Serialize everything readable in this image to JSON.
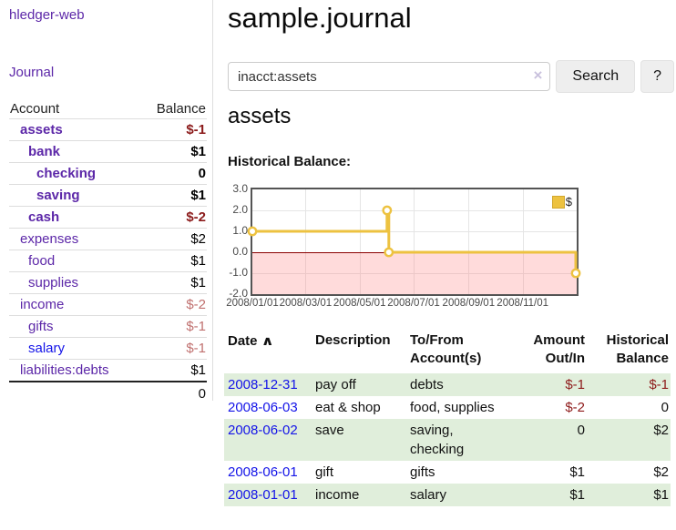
{
  "app": {
    "title": "hledger-web",
    "journal_link": "Journal"
  },
  "sidebar": {
    "header": {
      "account": "Account",
      "balance": "Balance"
    },
    "accounts": [
      {
        "name": "assets",
        "depth": 1,
        "bold": true,
        "balance": "$-1",
        "neg": "strong"
      },
      {
        "name": "bank",
        "depth": 2,
        "bold": true,
        "balance": "$1"
      },
      {
        "name": "checking",
        "depth": 3,
        "bold": true,
        "balance": "0"
      },
      {
        "name": "saving",
        "depth": 3,
        "bold": true,
        "balance": "$1"
      },
      {
        "name": "cash",
        "depth": 2,
        "bold": true,
        "balance": "$-2",
        "neg": "strong"
      },
      {
        "name": "expenses",
        "depth": 1,
        "bold": false,
        "balance": "$2"
      },
      {
        "name": "food",
        "depth": 2,
        "bold": false,
        "balance": "$1"
      },
      {
        "name": "supplies",
        "depth": 2,
        "bold": false,
        "balance": "$1"
      },
      {
        "name": "income",
        "depth": 1,
        "bold": false,
        "balance": "$-2",
        "neg": "soft"
      },
      {
        "name": "gifts",
        "depth": 2,
        "bold": false,
        "balance": "$-1",
        "neg": "soft"
      },
      {
        "name": "salary",
        "depth": 2,
        "bold": false,
        "balance": "$-1",
        "neg": "soft",
        "blue": true
      },
      {
        "name": "liabilities:debts",
        "depth": 1,
        "bold": false,
        "balance": "$1"
      }
    ],
    "total": "0"
  },
  "header": {
    "title": "sample.journal"
  },
  "search": {
    "value": "inacct:assets",
    "clear_icon": "×",
    "button": "Search",
    "help": "?"
  },
  "account_page": {
    "title": "assets",
    "chart_label": "Historical Balance:"
  },
  "chart_data": {
    "type": "line",
    "step": true,
    "title": "Historical Balance:",
    "series": [
      {
        "name": "$",
        "color": "#edc240",
        "points": [
          [
            "2008-01-01",
            1
          ],
          [
            "2008-06-01",
            2
          ],
          [
            "2008-06-03",
            0
          ],
          [
            "2008-12-31",
            -1
          ]
        ]
      }
    ],
    "xlim": [
      "2008-01-01",
      "2009-01-01"
    ],
    "ylim": [
      -2,
      3
    ],
    "yticks": [
      3,
      2,
      1,
      0,
      -1,
      -2
    ],
    "xticks": [
      "2008/01/01",
      "2008/03/01",
      "2008/05/01",
      "2008/07/01",
      "2008/09/01",
      "2008/11/01"
    ],
    "grid": true,
    "legend_position": "top-right",
    "negative_region_color": "#f9d9d9",
    "zero_line_color": "#8b0000"
  },
  "transactions": {
    "headers": {
      "date": "Date",
      "sort_icon": "∧",
      "description": "Description",
      "tofrom_1": "To/From",
      "tofrom_2": "Account(s)",
      "amount_1": "Amount",
      "amount_2": "Out/In",
      "hist_1": "Historical",
      "hist_2": "Balance"
    },
    "rows": [
      {
        "date": "2008-12-31",
        "description": "pay off",
        "accounts": "debts",
        "amount": "$-1",
        "amount_negative": true,
        "balance": "$-1",
        "balance_negative": true
      },
      {
        "date": "2008-06-03",
        "description": "eat & shop",
        "accounts": "food, supplies",
        "amount": "$-2",
        "amount_negative": true,
        "balance": "0",
        "balance_negative": false
      },
      {
        "date": "2008-06-02",
        "description": "save",
        "accounts": "saving, checking",
        "amount": "0",
        "amount_negative": false,
        "balance": "$2",
        "balance_negative": false
      },
      {
        "date": "2008-06-01",
        "description": "gift",
        "accounts": "gifts",
        "amount": "$1",
        "amount_negative": false,
        "balance": "$2",
        "balance_negative": false
      },
      {
        "date": "2008-01-01",
        "description": "income",
        "accounts": "salary",
        "amount": "$1",
        "amount_negative": false,
        "balance": "$1",
        "balance_negative": false
      }
    ]
  }
}
